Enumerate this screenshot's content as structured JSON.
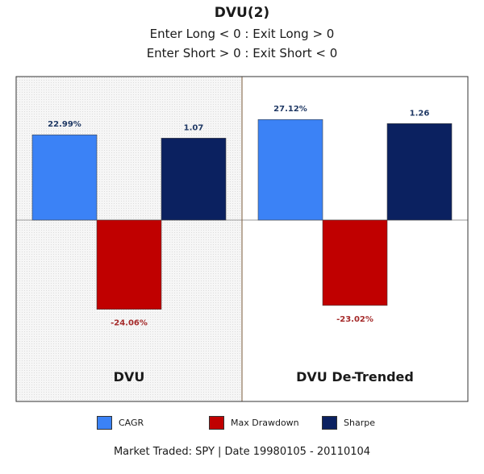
{
  "title": "DVU(2)",
  "subtitle_line1": "Enter Long < 0 : Exit Long > 0",
  "subtitle_line2": "Enter Short > 0 : Exit Short < 0",
  "footer": "Market Traded: SPY | Date 19980105 - 20110104",
  "colors": {
    "cagr": "#3b82f6",
    "max_drawdown": "#c00000",
    "sharpe": "#0b2160",
    "left_panel_bg": "#f3f3f3",
    "right_panel_bg": "#ffffff",
    "label_blue": "#1f3864",
    "label_red": "#a52a2a"
  },
  "legend": [
    {
      "name": "CAGR",
      "color_key": "cagr"
    },
    {
      "name": "Max Drawdown",
      "color_key": "max_drawdown"
    },
    {
      "name": "Sharpe",
      "color_key": "sharpe"
    }
  ],
  "chart_data": {
    "type": "bar",
    "title": "DVU(2)",
    "categories": [
      "DVU",
      "DVU De-Trended"
    ],
    "series": [
      {
        "name": "CAGR",
        "values": [
          22.99,
          27.12
        ],
        "labels": [
          "22.99%",
          "27.12%"
        ]
      },
      {
        "name": "Max Drawdown",
        "values": [
          -24.06,
          -23.02
        ],
        "labels": [
          "-24.06%",
          "-23.02%"
        ]
      },
      {
        "name": "Sharpe",
        "values": [
          1.07,
          1.26
        ],
        "labels": [
          "1.07",
          "1.26"
        ]
      }
    ],
    "grid": false,
    "legend_position": "bottom"
  }
}
